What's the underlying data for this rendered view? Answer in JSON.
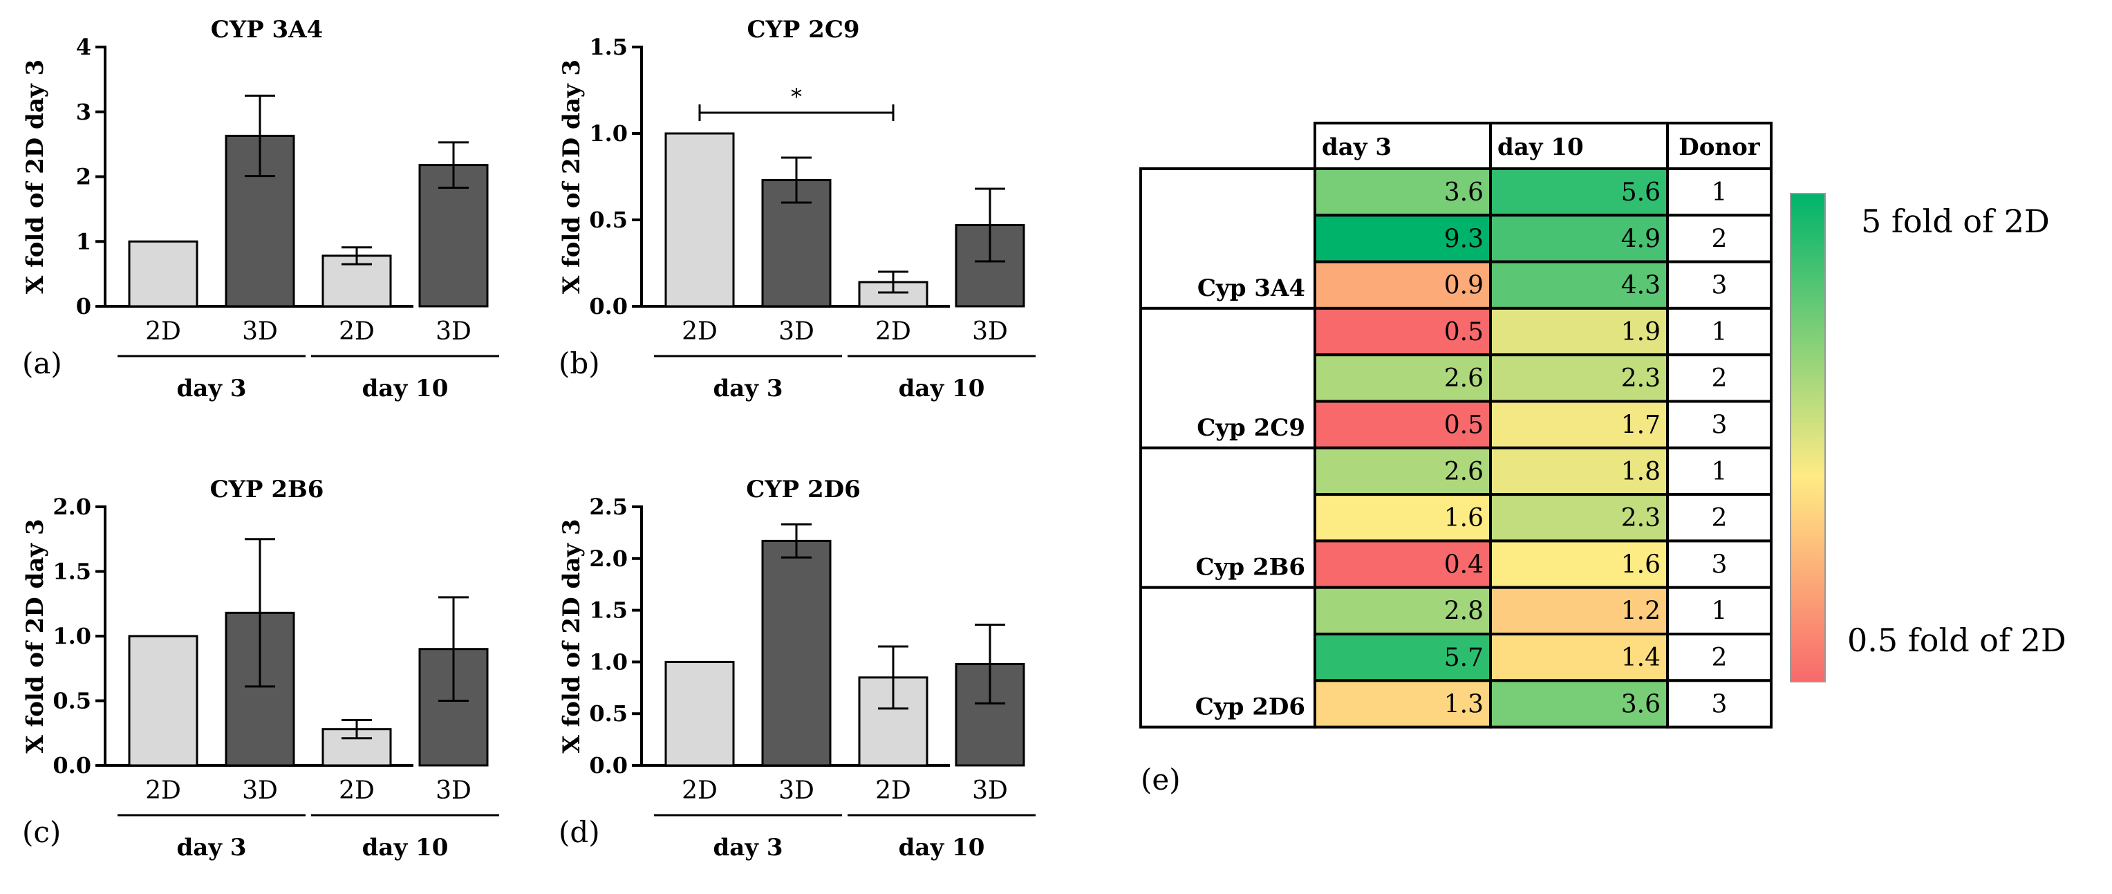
{
  "figure": {
    "panels": [
      "(a)",
      "(b)",
      "(c)",
      "(d)",
      "(e)"
    ]
  },
  "chart_data": [
    {
      "type": "bar",
      "panel": "(a)",
      "title": "CYP 3A4",
      "ylabel": "X fold of 2D day 3",
      "ylim": [
        0,
        4
      ],
      "yticks": [
        "0",
        "1",
        "2",
        "3",
        "4"
      ],
      "categories": [
        "2D",
        "3D",
        "2D",
        "3D"
      ],
      "groups": [
        "day 3",
        "day 10"
      ],
      "values": [
        1.0,
        2.63,
        0.78,
        2.18
      ],
      "errors": [
        0,
        0.62,
        0.13,
        0.35
      ],
      "significance": null
    },
    {
      "type": "bar",
      "panel": "(b)",
      "title": "CYP 2C9",
      "ylabel": "X fold of 2D day 3",
      "ylim": [
        0,
        1.5
      ],
      "yticks": [
        "0.0",
        "0.5",
        "1.0",
        "1.5"
      ],
      "categories": [
        "2D",
        "3D",
        "2D",
        "3D"
      ],
      "groups": [
        "day 3",
        "day 10"
      ],
      "values": [
        1.0,
        0.73,
        0.14,
        0.47
      ],
      "errors": [
        0,
        0.13,
        0.06,
        0.21
      ],
      "significance": {
        "from": 0,
        "to": 2,
        "label": "*"
      }
    },
    {
      "type": "bar",
      "panel": "(c)",
      "title": "CYP 2B6",
      "ylabel": "X fold of 2D day 3",
      "ylim": [
        0,
        2.0
      ],
      "yticks": [
        "0.0",
        "0.5",
        "1.0",
        "1.5",
        "2.0"
      ],
      "categories": [
        "2D",
        "3D",
        "2D",
        "3D"
      ],
      "groups": [
        "day 3",
        "day 10"
      ],
      "values": [
        1.0,
        1.18,
        0.28,
        0.9
      ],
      "errors": [
        0,
        0.57,
        0.07,
        0.4
      ],
      "significance": null
    },
    {
      "type": "bar",
      "panel": "(d)",
      "title": "CYP 2D6",
      "ylabel": "X fold of 2D day 3",
      "ylim": [
        0,
        2.5
      ],
      "yticks": [
        "0.0",
        "0.5",
        "1.0",
        "1.5",
        "2.0",
        "2.5"
      ],
      "categories": [
        "2D",
        "3D",
        "2D",
        "3D"
      ],
      "groups": [
        "day 3",
        "day 10"
      ],
      "values": [
        1.0,
        2.17,
        0.85,
        0.98
      ],
      "errors": [
        0,
        0.16,
        0.3,
        0.38
      ],
      "significance": null
    },
    {
      "type": "table",
      "panel": "(e)",
      "columns": [
        "day 3",
        "day 10",
        "Donor"
      ],
      "rows": [
        {
          "group": "Cyp 3A4",
          "day3": "3.6",
          "day10": "5.6",
          "donor": "1"
        },
        {
          "group": "",
          "day3": "9.3",
          "day10": "4.9",
          "donor": "2"
        },
        {
          "group": "",
          "day3": "0.9",
          "day10": "4.3",
          "donor": "3"
        },
        {
          "group": "Cyp 2C9",
          "day3": "0.5",
          "day10": "1.9",
          "donor": "1"
        },
        {
          "group": "",
          "day3": "2.6",
          "day10": "2.3",
          "donor": "2"
        },
        {
          "group": "",
          "day3": "0.5",
          "day10": "1.7",
          "donor": "3"
        },
        {
          "group": "Cyp 2B6",
          "day3": "2.6",
          "day10": "1.8",
          "donor": "1"
        },
        {
          "group": "",
          "day3": "1.6",
          "day10": "2.3",
          "donor": "2"
        },
        {
          "group": "",
          "day3": "0.4",
          "day10": "1.6",
          "donor": "3"
        },
        {
          "group": "Cyp 2D6",
          "day3": "2.8",
          "day10": "1.2",
          "donor": "1"
        },
        {
          "group": "",
          "day3": "5.7",
          "day10": "1.4",
          "donor": "2"
        },
        {
          "group": "",
          "day3": "1.3",
          "day10": "3.6",
          "donor": "3"
        }
      ],
      "legend": {
        "high_label": "5 fold of 2D",
        "low_label": "0.5 fold of 2D",
        "high_color": "#00b36b",
        "mid_color": "#ffeb84",
        "low_color": "#f8696b"
      }
    }
  ],
  "colors": {
    "bar_2d": "#d9d9d9",
    "bar_3d": "#595959",
    "axis": "#000000"
  }
}
